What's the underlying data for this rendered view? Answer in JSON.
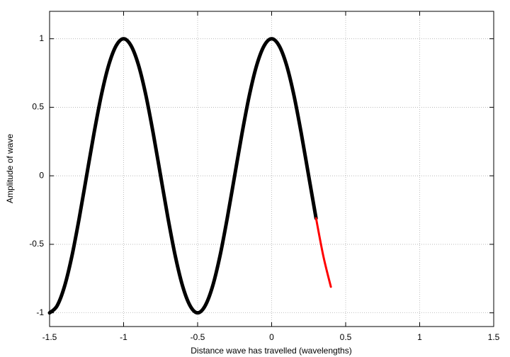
{
  "chart_data": {
    "type": "line",
    "x_label": "Distance wave has travelled (wavelengths)",
    "y_label": "Amplitude of wave",
    "xlim": [
      -1.5,
      1.5
    ],
    "ylim": [
      -1.1,
      1.2
    ],
    "xticks": [
      -1.5,
      -1,
      -0.5,
      0,
      0.5,
      1,
      1.5
    ],
    "yticks": [
      -1,
      -0.5,
      0,
      0.5,
      1
    ],
    "grid": true,
    "series": [
      {
        "color": "#000000",
        "width": 5,
        "x": [
          -1.5,
          -1.45,
          -1.4,
          -1.35,
          -1.3,
          -1.25,
          -1.2,
          -1.15,
          -1.1,
          -1.05,
          -1,
          -0.95,
          -0.9,
          -0.85,
          -0.8,
          -0.75,
          -0.7,
          -0.65,
          -0.6,
          -0.55,
          -0.5,
          -0.45,
          -0.4,
          -0.35,
          -0.3,
          -0.25,
          -0.2,
          -0.15,
          -0.1,
          -0.05,
          0,
          0.05,
          0.1,
          0.15,
          0.2,
          0.25,
          0.3
        ],
        "values": [
          -1,
          -0.95,
          -0.81,
          -0.59,
          -0.31,
          0,
          0.31,
          0.59,
          0.81,
          0.95,
          1,
          0.95,
          0.81,
          0.59,
          0.31,
          0,
          -0.31,
          -0.59,
          -0.81,
          -0.95,
          -1,
          -0.95,
          -0.81,
          -0.59,
          -0.31,
          0,
          0.31,
          0.59,
          0.81,
          0.95,
          1,
          0.95,
          0.81,
          0.59,
          0.31,
          0,
          -0.31
        ]
      },
      {
        "color": "#ff0000",
        "width": 3,
        "x": [
          0.3,
          0.35,
          0.4
        ],
        "values": [
          -0.31,
          -0.59,
          -0.81
        ]
      }
    ]
  }
}
